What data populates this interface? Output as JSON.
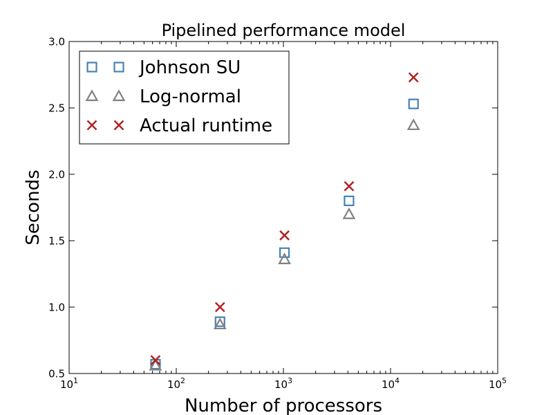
{
  "chart_data": {
    "type": "scatter",
    "title": "Pipelined performance model",
    "xlabel": "Number of processors",
    "ylabel": "Seconds",
    "xscale": "log",
    "xlim": [
      10,
      100000
    ],
    "ylim": [
      0.5,
      3.0
    ],
    "x_ticks": [
      {
        "value": 10,
        "base": "10",
        "exp": "1"
      },
      {
        "value": 100,
        "base": "10",
        "exp": "2"
      },
      {
        "value": 1000,
        "base": "10",
        "exp": "3"
      },
      {
        "value": 10000,
        "base": "10",
        "exp": "4"
      },
      {
        "value": 100000,
        "base": "10",
        "exp": "5"
      }
    ],
    "y_ticks": [
      {
        "value": 0.5,
        "label": "0.5"
      },
      {
        "value": 1.0,
        "label": "1.0"
      },
      {
        "value": 1.5,
        "label": "1.5"
      },
      {
        "value": 2.0,
        "label": "2.0"
      },
      {
        "value": 2.5,
        "label": "2.5"
      },
      {
        "value": 3.0,
        "label": "3.0"
      }
    ],
    "x": [
      64,
      256,
      1024,
      4096,
      16384
    ],
    "grid": false,
    "legend_position": "upper-left",
    "series": [
      {
        "name": "Johnson SU",
        "marker": "square",
        "color": "#4682b4",
        "values": [
          0.57,
          0.89,
          1.41,
          1.8,
          2.53
        ]
      },
      {
        "name": "Log-normal",
        "marker": "triangle",
        "color": "#808080",
        "values": [
          0.56,
          0.87,
          1.36,
          1.7,
          2.37
        ]
      },
      {
        "name": "Actual runtime",
        "marker": "x",
        "color": "#b22222",
        "values": [
          0.6,
          1.0,
          1.54,
          1.91,
          2.73
        ]
      }
    ]
  }
}
